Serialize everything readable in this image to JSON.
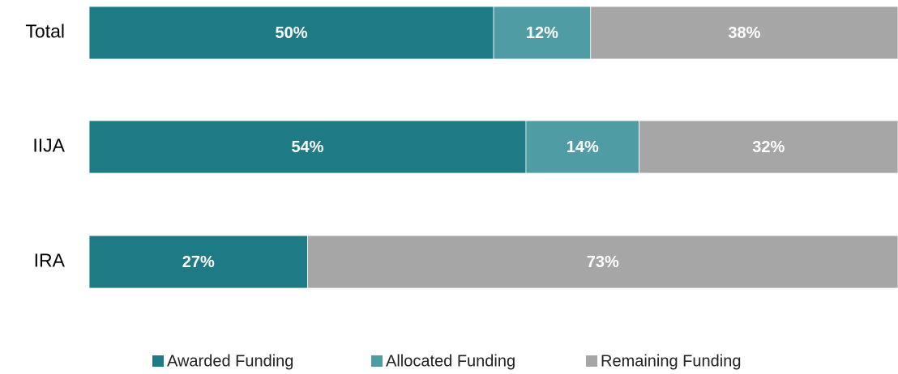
{
  "chart_data": {
    "type": "stacked_barh",
    "categories": [
      "Total",
      "IIJA",
      "IRA"
    ],
    "series": [
      {
        "name": "Awarded Funding",
        "color": "#1e7b85",
        "values": [
          50,
          54,
          27
        ],
        "value_labels": [
          "50%",
          "54%",
          "27%"
        ]
      },
      {
        "name": "Allocated Funding",
        "color": "#4f9ca4",
        "values": [
          12,
          14,
          null
        ],
        "value_labels": [
          "12%",
          "14%",
          null
        ]
      },
      {
        "name": "Remaining Funding",
        "color": "#a6a6a6",
        "values": [
          38,
          32,
          73
        ],
        "value_labels": [
          "38%",
          "32%",
          "73%"
        ]
      }
    ],
    "xlim": [
      0,
      100
    ],
    "legend": "bottom"
  }
}
